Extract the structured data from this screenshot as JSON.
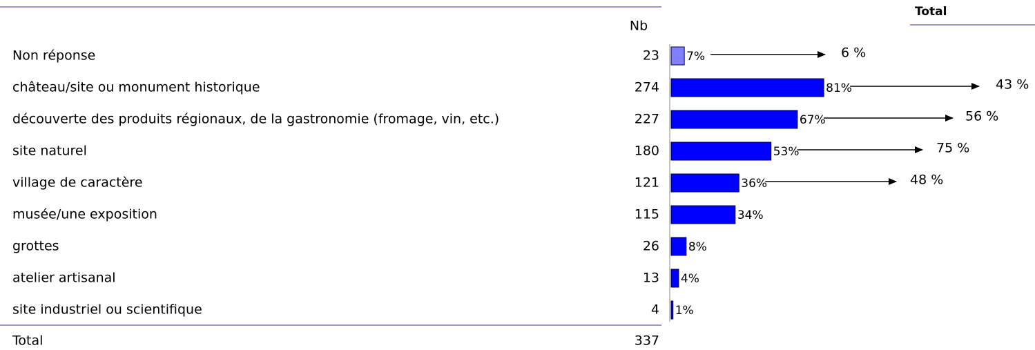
{
  "chart_data": {
    "type": "bar",
    "column_header": "Nb",
    "total_header": "Total",
    "categories": [
      "Non réponse",
      "château/site ou monument historique",
      "découverte des produits régionaux, de la gastronomie (fromage, vin, etc.)",
      "site naturel",
      "village de caractère",
      "musée/une exposition",
      "grottes",
      "atelier artisanal",
      "site industriel ou scientifique"
    ],
    "counts": [
      23,
      274,
      227,
      180,
      121,
      115,
      26,
      13,
      4
    ],
    "values": [
      7,
      81,
      67,
      53,
      36,
      34,
      8,
      4,
      1
    ],
    "value_labels": [
      "7%",
      "81%",
      "67%",
      "53%",
      "36%",
      "34%",
      "8%",
      "4%",
      "1%"
    ],
    "colors": [
      "#8080ff",
      "#0000ff",
      "#0000ff",
      "#0000ff",
      "#0000ff",
      "#0000ff",
      "#0000ff",
      "#0000ff",
      "#0000ff"
    ],
    "total_values": [
      6,
      43,
      56,
      75,
      48,
      null,
      null,
      null,
      null
    ],
    "total_labels": [
      "6 %",
      "43 %",
      "56 %",
      "75 %",
      "48 %",
      null,
      null,
      null,
      null
    ],
    "total_row_label": "Total",
    "total_count": 337
  }
}
